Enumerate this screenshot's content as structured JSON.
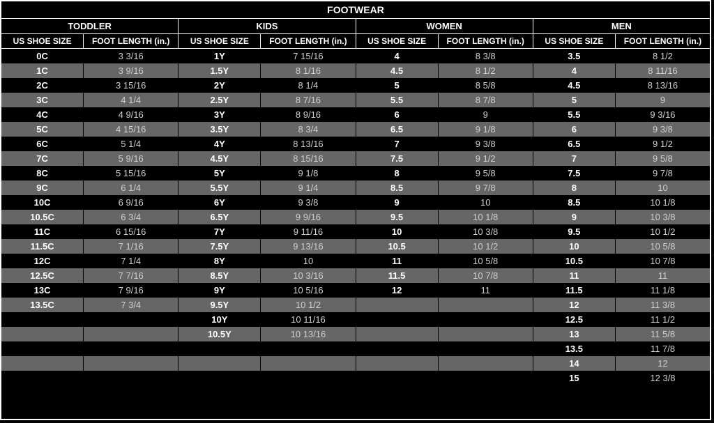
{
  "title": "FOOTWEAR",
  "colors": {
    "row_odd": "#000000",
    "row_even": "#666666",
    "border": "#ffffff",
    "text": "#ffffff",
    "text_length": "#d0d0d0"
  },
  "groups": [
    {
      "name": "TODDLER",
      "size_header": "US SHOE SIZE",
      "length_header": "FOOT LENGTH (in.)",
      "rows": [
        {
          "s": "0C",
          "l": "3  3/16"
        },
        {
          "s": "1C",
          "l": "3  9/16"
        },
        {
          "s": "2C",
          "l": "3 15/16"
        },
        {
          "s": "3C",
          "l": "4 1/4"
        },
        {
          "s": "4C",
          "l": "4  9/16"
        },
        {
          "s": "5C",
          "l": "4 15/16"
        },
        {
          "s": "6C",
          "l": "5 1/4"
        },
        {
          "s": "7C",
          "l": "5  9/16"
        },
        {
          "s": "8C",
          "l": "5 15/16"
        },
        {
          "s": "9C",
          "l": "6 1/4"
        },
        {
          "s": "10C",
          "l": "6  9/16"
        },
        {
          "s": "10.5C",
          "l": "6 3/4"
        },
        {
          "s": "11C",
          "l": "6 15/16"
        },
        {
          "s": "11.5C",
          "l": "7  1/16"
        },
        {
          "s": "12C",
          "l": "7 1/4"
        },
        {
          "s": "12.5C",
          "l": "7  7/16"
        },
        {
          "s": "13C",
          "l": "7  9/16"
        },
        {
          "s": "13.5C",
          "l": "7 3/4"
        }
      ]
    },
    {
      "name": "KIDS",
      "size_header": "US SHOE SIZE",
      "length_header": "FOOT LENGTH (in.)",
      "rows": [
        {
          "s": "1Y",
          "l": "7 15/16"
        },
        {
          "s": "1.5Y",
          "l": "8  1/16"
        },
        {
          "s": "2Y",
          "l": "8  1/4"
        },
        {
          "s": "2.5Y",
          "l": "8  7/16"
        },
        {
          "s": "3Y",
          "l": "8  9/16"
        },
        {
          "s": "3.5Y",
          "l": "8  3/4"
        },
        {
          "s": "4Y",
          "l": "8 13/16"
        },
        {
          "s": "4.5Y",
          "l": "8 15/16"
        },
        {
          "s": "5Y",
          "l": "9  1/8"
        },
        {
          "s": "5.5Y",
          "l": "9  1/4"
        },
        {
          "s": "6Y",
          "l": "9  3/8"
        },
        {
          "s": "6.5Y",
          "l": "9  9/16"
        },
        {
          "s": "7Y",
          "l": "9 11/16"
        },
        {
          "s": "7.5Y",
          "l": "9 13/16"
        },
        {
          "s": "8Y",
          "l": "10"
        },
        {
          "s": "8.5Y",
          "l": "10  3/16"
        },
        {
          "s": "9Y",
          "l": "10  5/16"
        },
        {
          "s": "9.5Y",
          "l": "10  1/2"
        },
        {
          "s": "10Y",
          "l": "10 11/16"
        },
        {
          "s": "10.5Y",
          "l": "10 13/16"
        }
      ]
    },
    {
      "name": "WOMEN",
      "size_header": "US SHOE SIZE",
      "length_header": "FOOT LENGTH (in.)",
      "rows": [
        {
          "s": "4",
          "l": "8 3/8"
        },
        {
          "s": "4.5",
          "l": "8 1/2"
        },
        {
          "s": "5",
          "l": "8 5/8"
        },
        {
          "s": "5.5",
          "l": "8 7/8"
        },
        {
          "s": "6",
          "l": "9"
        },
        {
          "s": "6.5",
          "l": "9 1/8"
        },
        {
          "s": "7",
          "l": "9 3/8"
        },
        {
          "s": "7.5",
          "l": "9 1/2"
        },
        {
          "s": "8",
          "l": "9 5/8"
        },
        {
          "s": "8.5",
          "l": "9 7/8"
        },
        {
          "s": "9",
          "l": "10"
        },
        {
          "s": "9.5",
          "l": "10 1/8"
        },
        {
          "s": "10",
          "l": "10 3/8"
        },
        {
          "s": "10.5",
          "l": "10 1/2"
        },
        {
          "s": "11",
          "l": "10 5/8"
        },
        {
          "s": "11.5",
          "l": "10 7/8"
        },
        {
          "s": "12",
          "l": "11"
        }
      ]
    },
    {
      "name": "MEN",
      "size_header": "US SHOE SIZE",
      "length_header": "FOOT LENGTH (in.)",
      "rows": [
        {
          "s": "3.5",
          "l": "8 1/2"
        },
        {
          "s": "4",
          "l": "8 11/16"
        },
        {
          "s": "4.5",
          "l": "8 13/16"
        },
        {
          "s": "5",
          "l": "9"
        },
        {
          "s": "5.5",
          "l": "9  3/16"
        },
        {
          "s": "6",
          "l": "9 3/8"
        },
        {
          "s": "6.5",
          "l": "9 1/2"
        },
        {
          "s": "7",
          "l": "9 5/8"
        },
        {
          "s": "7.5",
          "l": "9 7/8"
        },
        {
          "s": "8",
          "l": "10"
        },
        {
          "s": "8.5",
          "l": "10 1/8"
        },
        {
          "s": "9",
          "l": "10 3/8"
        },
        {
          "s": "9.5",
          "l": "10 1/2"
        },
        {
          "s": "10",
          "l": "10 5/8"
        },
        {
          "s": "10.5",
          "l": "10 7/8"
        },
        {
          "s": "11",
          "l": "11"
        },
        {
          "s": "11.5",
          "l": "11 1/8"
        },
        {
          "s": "12",
          "l": "11 3/8"
        },
        {
          "s": "12.5",
          "l": "11 1/2"
        },
        {
          "s": "13",
          "l": "11 5/8"
        },
        {
          "s": "13.5",
          "l": "11 7/8"
        },
        {
          "s": "14",
          "l": "12"
        },
        {
          "s": "15",
          "l": "12 3/8"
        }
      ]
    }
  ],
  "total_rows": 23
}
